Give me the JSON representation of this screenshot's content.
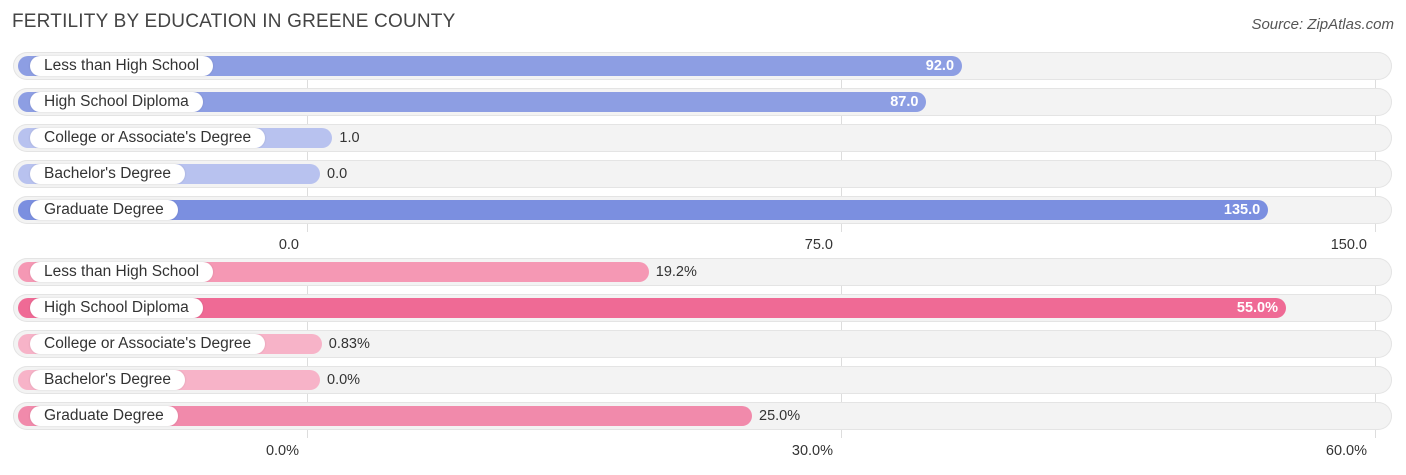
{
  "header": {
    "title": "FERTILITY BY EDUCATION IN GREENE COUNTY",
    "source": "Source: ZipAtlas.com"
  },
  "chart_data": [
    {
      "type": "bar",
      "orientation": "horizontal",
      "categories": [
        "Less than High School",
        "High School Diploma",
        "College or Associate's Degree",
        "Bachelor's Degree",
        "Graduate Degree"
      ],
      "values": [
        92.0,
        87.0,
        1.0,
        0.0,
        135.0
      ],
      "value_labels": [
        "92.0",
        "87.0",
        "1.0",
        "0.0",
        "135.0"
      ],
      "colors": [
        "#8d9ee3",
        "#8d9ee3",
        "#b8c2ef",
        "#b8c2ef",
        "#7b8fe0"
      ],
      "xlim": [
        0,
        150
      ],
      "ticks": [
        0,
        75,
        150
      ],
      "tick_labels": [
        "0.0",
        "75.0",
        "150.0"
      ],
      "title": "",
      "xlabel": "",
      "ylabel": ""
    },
    {
      "type": "bar",
      "orientation": "horizontal",
      "categories": [
        "Less than High School",
        "High School Diploma",
        "College or Associate's Degree",
        "Bachelor's Degree",
        "Graduate Degree"
      ],
      "values": [
        19.2,
        55.0,
        0.83,
        0.0,
        25.0
      ],
      "value_labels": [
        "19.2%",
        "55.0%",
        "0.83%",
        "0.0%",
        "25.0%"
      ],
      "colors": [
        "#f598b4",
        "#ef6a95",
        "#f7b3c8",
        "#f7b3c8",
        "#f18aab"
      ],
      "xlim": [
        0,
        60
      ],
      "ticks": [
        0,
        30,
        60
      ],
      "tick_labels": [
        "0.0%",
        "30.0%",
        "60.0%"
      ],
      "title": "",
      "xlabel": "",
      "ylabel": ""
    }
  ]
}
